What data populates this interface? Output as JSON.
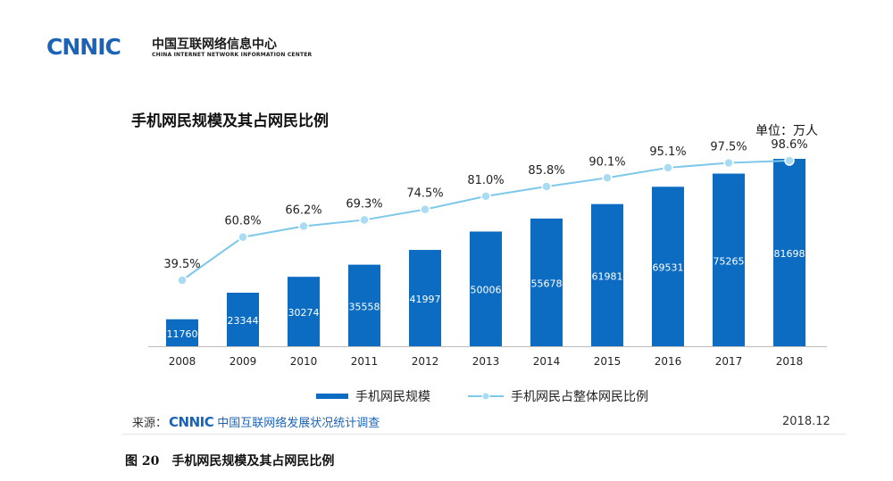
{
  "header": {
    "logo_text": "CNNIC",
    "org_name_cn": "中国互联网络信息中心",
    "org_name_en": "CHINA INTERNET NETWORK INFORMATION CENTER"
  },
  "chart_title": "手机网民规模及其占网民比例",
  "unit_label": "单位：万人",
  "source": {
    "prefix": "来源：",
    "logo_text": "CNNIC",
    "name": "中国互联网络发展状况统计调查"
  },
  "date": "2018.12",
  "caption": "图 20　手机网民规模及其占网民比例",
  "colors": {
    "bar": "#0c6cc1",
    "line": "#7ec8ea",
    "marker_fill": "#a9dcf2",
    "accent": "#1c63b6"
  },
  "chart_data": {
    "type": "bar+line",
    "title": "手机网民规模及其占网民比例",
    "categories": [
      "2008",
      "2009",
      "2010",
      "2011",
      "2012",
      "2013",
      "2014",
      "2015",
      "2016",
      "2017",
      "2018"
    ],
    "series": [
      {
        "name": "手机网民规模",
        "type": "bar",
        "values": [
          11760,
          23344,
          30274,
          35558,
          41997,
          50006,
          55678,
          61981,
          69531,
          75265,
          81698
        ]
      },
      {
        "name": "手机网民占整体网民比例",
        "type": "line",
        "values": [
          39.5,
          60.8,
          66.2,
          69.3,
          74.5,
          81.0,
          85.8,
          90.1,
          95.1,
          97.5,
          98.6
        ],
        "labels": [
          "39.5%",
          "60.8%",
          "66.2%",
          "69.3%",
          "74.5%",
          "81.0%",
          "85.8%",
          "90.1%",
          "95.1%",
          "97.5%",
          "98.6%"
        ]
      }
    ],
    "bar_ylim": [
      0,
      85000
    ],
    "line_ylim": [
      0,
      100
    ],
    "grid": false,
    "legend": "bottom"
  }
}
